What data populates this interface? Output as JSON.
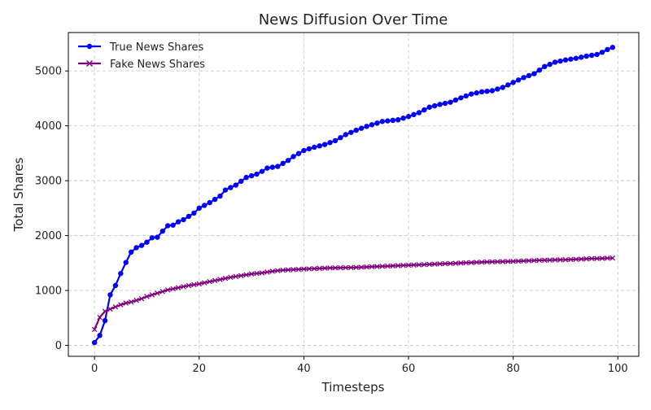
{
  "chart_data": {
    "type": "line",
    "title": "News Diffusion Over Time",
    "xlabel": "Timesteps",
    "ylabel": "Total Shares",
    "xlim": [
      -5,
      104
    ],
    "ylim": [
      -200,
      5700
    ],
    "xticks": [
      0,
      20,
      40,
      60,
      80,
      100
    ],
    "yticks": [
      0,
      1000,
      2000,
      3000,
      4000,
      5000
    ],
    "grid": true,
    "legend_position": "top-left",
    "series": [
      {
        "name": "True News Shares",
        "color": "#0000ff",
        "marker": "circle",
        "keypoints": [
          [
            0,
            50
          ],
          [
            1,
            180
          ],
          [
            2,
            450
          ],
          [
            3,
            920
          ],
          [
            4,
            1090
          ],
          [
            5,
            1310
          ],
          [
            6,
            1510
          ],
          [
            7,
            1700
          ],
          [
            8,
            1780
          ],
          [
            9,
            1820
          ],
          [
            10,
            1880
          ],
          [
            11,
            1960
          ],
          [
            12,
            1970
          ],
          [
            13,
            2080
          ],
          [
            14,
            2180
          ],
          [
            15,
            2190
          ],
          [
            16,
            2250
          ],
          [
            17,
            2290
          ],
          [
            18,
            2350
          ],
          [
            19,
            2410
          ],
          [
            20,
            2500
          ],
          [
            22,
            2600
          ],
          [
            24,
            2720
          ],
          [
            25,
            2830
          ],
          [
            27,
            2920
          ],
          [
            29,
            3060
          ],
          [
            31,
            3120
          ],
          [
            32,
            3170
          ],
          [
            33,
            3230
          ],
          [
            35,
            3260
          ],
          [
            37,
            3370
          ],
          [
            38,
            3440
          ],
          [
            40,
            3550
          ],
          [
            42,
            3610
          ],
          [
            44,
            3660
          ],
          [
            46,
            3730
          ],
          [
            48,
            3840
          ],
          [
            50,
            3920
          ],
          [
            52,
            3990
          ],
          [
            54,
            4050
          ],
          [
            55,
            4080
          ],
          [
            58,
            4110
          ],
          [
            60,
            4170
          ],
          [
            62,
            4240
          ],
          [
            64,
            4340
          ],
          [
            66,
            4390
          ],
          [
            68,
            4430
          ],
          [
            70,
            4510
          ],
          [
            72,
            4580
          ],
          [
            74,
            4620
          ],
          [
            76,
            4640
          ],
          [
            78,
            4700
          ],
          [
            80,
            4790
          ],
          [
            82,
            4880
          ],
          [
            84,
            4950
          ],
          [
            86,
            5080
          ],
          [
            88,
            5160
          ],
          [
            90,
            5200
          ],
          [
            92,
            5230
          ],
          [
            94,
            5270
          ],
          [
            96,
            5300
          ],
          [
            97,
            5340
          ],
          [
            98,
            5390
          ],
          [
            99,
            5430
          ]
        ]
      },
      {
        "name": "Fake News Shares",
        "color": "#800080",
        "marker": "x",
        "keypoints": [
          [
            0,
            290
          ],
          [
            1,
            510
          ],
          [
            2,
            620
          ],
          [
            3,
            660
          ],
          [
            4,
            700
          ],
          [
            5,
            740
          ],
          [
            6,
            770
          ],
          [
            7,
            790
          ],
          [
            8,
            820
          ],
          [
            9,
            850
          ],
          [
            10,
            890
          ],
          [
            12,
            950
          ],
          [
            14,
            1010
          ],
          [
            16,
            1050
          ],
          [
            18,
            1090
          ],
          [
            20,
            1120
          ],
          [
            22,
            1160
          ],
          [
            24,
            1200
          ],
          [
            26,
            1240
          ],
          [
            28,
            1270
          ],
          [
            30,
            1300
          ],
          [
            32,
            1320
          ],
          [
            34,
            1350
          ],
          [
            36,
            1370
          ],
          [
            38,
            1380
          ],
          [
            40,
            1390
          ],
          [
            45,
            1410
          ],
          [
            50,
            1420
          ],
          [
            55,
            1440
          ],
          [
            60,
            1460
          ],
          [
            65,
            1480
          ],
          [
            70,
            1500
          ],
          [
            75,
            1520
          ],
          [
            80,
            1530
          ],
          [
            85,
            1550
          ],
          [
            90,
            1560
          ],
          [
            95,
            1580
          ],
          [
            99,
            1590
          ]
        ]
      }
    ]
  }
}
